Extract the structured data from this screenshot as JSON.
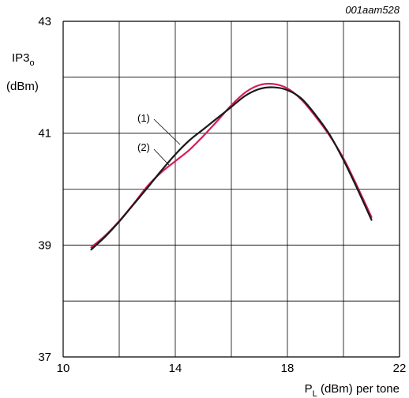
{
  "reference_id": "001aam528",
  "chart_data": {
    "type": "line",
    "xlabel": {
      "main": "P",
      "sub": "L",
      "rest": " (dBm) per tone"
    },
    "ylabel": {
      "line1_main": "IP3",
      "line1_sub": "o",
      "line2": "(dBm)"
    },
    "xlim": [
      10,
      22
    ],
    "ylim": [
      37,
      43
    ],
    "x_ticks": [
      10,
      12,
      14,
      16,
      18,
      20,
      22
    ],
    "y_ticks": [
      37,
      38,
      39,
      40,
      41,
      42,
      43
    ],
    "x_tick_labels": [
      "10",
      "14",
      "18",
      "22"
    ],
    "y_tick_labels": [
      "37",
      "39",
      "41",
      "43"
    ],
    "grid": true,
    "annotations": [
      {
        "text": "(1)",
        "series": 0
      },
      {
        "text": "(2)",
        "series": 1
      }
    ],
    "series": [
      {
        "color": "#1a1a1a",
        "x": [
          11.0,
          11.5,
          12.0,
          12.5,
          13.0,
          13.5,
          14.0,
          14.5,
          15.0,
          15.5,
          16.0,
          16.5,
          17.0,
          17.5,
          18.0,
          18.5,
          19.0,
          19.5,
          20.0,
          20.5,
          21.0
        ],
        "y": [
          38.92,
          39.15,
          39.42,
          39.72,
          40.02,
          40.33,
          40.62,
          40.87,
          41.07,
          41.27,
          41.47,
          41.67,
          41.79,
          41.82,
          41.77,
          41.62,
          41.33,
          40.98,
          40.52,
          40.0,
          39.45
        ]
      },
      {
        "color": "#d81b5f",
        "x": [
          11.0,
          11.5,
          12.0,
          12.5,
          13.0,
          13.5,
          14.0,
          14.5,
          15.0,
          15.5,
          16.0,
          16.5,
          17.0,
          17.5,
          18.0,
          18.5,
          19.0,
          19.5,
          20.0,
          20.5,
          21.0
        ],
        "y": [
          38.96,
          39.17,
          39.43,
          39.73,
          40.05,
          40.3,
          40.5,
          40.7,
          40.95,
          41.22,
          41.5,
          41.73,
          41.86,
          41.88,
          41.8,
          41.6,
          41.3,
          40.96,
          40.55,
          40.04,
          39.5
        ]
      }
    ]
  }
}
